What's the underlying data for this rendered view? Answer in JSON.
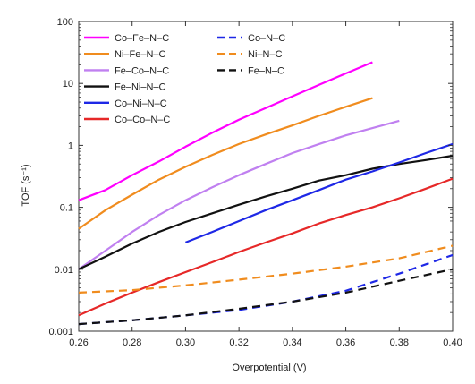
{
  "chart_data": {
    "type": "line",
    "title": "",
    "xlabel": "Overpotential (V)",
    "ylabel": "TOF (s⁻¹)",
    "xlim": [
      0.26,
      0.4
    ],
    "ylim": [
      0.001,
      100
    ],
    "yscale": "log",
    "grid": false,
    "legend_placement": "top-left, two columns",
    "x_ticks": [
      "0.26",
      "0.28",
      "0.30",
      "0.32",
      "0.34",
      "0.36",
      "0.38",
      "0.40"
    ],
    "y_ticks": [
      "0.001",
      "0.01",
      "0.1",
      "1",
      "10",
      "100"
    ],
    "series": [
      {
        "name": "Co–Fe–N–C",
        "color": "#ff00ff",
        "style": "solid",
        "x": [
          0.26,
          0.27,
          0.28,
          0.29,
          0.3,
          0.31,
          0.32,
          0.33,
          0.34,
          0.35,
          0.36,
          0.37
        ],
        "y": [
          0.13,
          0.19,
          0.33,
          0.55,
          0.95,
          1.6,
          2.6,
          4.0,
          6.2,
          9.5,
          14.5,
          22
        ]
      },
      {
        "name": "Ni–Fe–N–C",
        "color": "#f08c1e",
        "style": "solid",
        "x": [
          0.26,
          0.27,
          0.28,
          0.29,
          0.3,
          0.31,
          0.32,
          0.33,
          0.34,
          0.35,
          0.36,
          0.37
        ],
        "y": [
          0.045,
          0.09,
          0.16,
          0.28,
          0.45,
          0.7,
          1.05,
          1.5,
          2.1,
          3.0,
          4.2,
          5.8
        ]
      },
      {
        "name": "Fe–Co–N–C",
        "color": "#c080f0",
        "style": "solid",
        "x": [
          0.26,
          0.27,
          0.28,
          0.29,
          0.3,
          0.31,
          0.32,
          0.33,
          0.34,
          0.35,
          0.36,
          0.37,
          0.38
        ],
        "y": [
          0.01,
          0.02,
          0.04,
          0.075,
          0.13,
          0.21,
          0.33,
          0.5,
          0.75,
          1.05,
          1.45,
          1.9,
          2.5
        ]
      },
      {
        "name": "Fe–Ni–N–C",
        "color": "#111111",
        "style": "solid",
        "x": [
          0.26,
          0.27,
          0.28,
          0.29,
          0.3,
          0.31,
          0.32,
          0.33,
          0.34,
          0.35,
          0.36,
          0.37,
          0.38,
          0.39,
          0.4
        ],
        "y": [
          0.01,
          0.016,
          0.026,
          0.04,
          0.058,
          0.08,
          0.11,
          0.15,
          0.2,
          0.27,
          0.33,
          0.42,
          0.5,
          0.58,
          0.68
        ]
      },
      {
        "name": "Co–Ni–N–C",
        "color": "#1e28e6",
        "style": "solid",
        "x": [
          0.3,
          0.31,
          0.32,
          0.33,
          0.34,
          0.35,
          0.36,
          0.37,
          0.38,
          0.39,
          0.4
        ],
        "y": [
          0.027,
          0.04,
          0.06,
          0.09,
          0.13,
          0.19,
          0.28,
          0.38,
          0.53,
          0.75,
          1.05
        ]
      },
      {
        "name": "Co–Co–N–C",
        "color": "#e62828",
        "style": "solid",
        "x": [
          0.26,
          0.27,
          0.28,
          0.29,
          0.3,
          0.31,
          0.32,
          0.33,
          0.34,
          0.35,
          0.36,
          0.37,
          0.38,
          0.39,
          0.4
        ],
        "y": [
          0.0018,
          0.0028,
          0.0042,
          0.0062,
          0.009,
          0.013,
          0.019,
          0.027,
          0.038,
          0.055,
          0.075,
          0.1,
          0.14,
          0.2,
          0.29
        ]
      },
      {
        "name": "Co–N–C",
        "color": "#1e28e6",
        "style": "dashed",
        "x": [
          0.26,
          0.28,
          0.3,
          0.32,
          0.34,
          0.36,
          0.37,
          0.38,
          0.39,
          0.4
        ],
        "y": [
          0.0013,
          0.0015,
          0.0018,
          0.0022,
          0.003,
          0.0045,
          0.0062,
          0.0085,
          0.012,
          0.017
        ]
      },
      {
        "name": "Ni–N–C",
        "color": "#f08c1e",
        "style": "dashed",
        "x": [
          0.26,
          0.28,
          0.3,
          0.32,
          0.34,
          0.36,
          0.38,
          0.4
        ],
        "y": [
          0.0042,
          0.0046,
          0.0055,
          0.0068,
          0.0085,
          0.011,
          0.015,
          0.024
        ]
      },
      {
        "name": "Fe–N–C",
        "color": "#111111",
        "style": "dashed",
        "x": [
          0.26,
          0.28,
          0.3,
          0.32,
          0.34,
          0.36,
          0.38,
          0.4
        ],
        "y": [
          0.0013,
          0.0015,
          0.0018,
          0.0023,
          0.003,
          0.0042,
          0.0065,
          0.01
        ]
      }
    ]
  }
}
